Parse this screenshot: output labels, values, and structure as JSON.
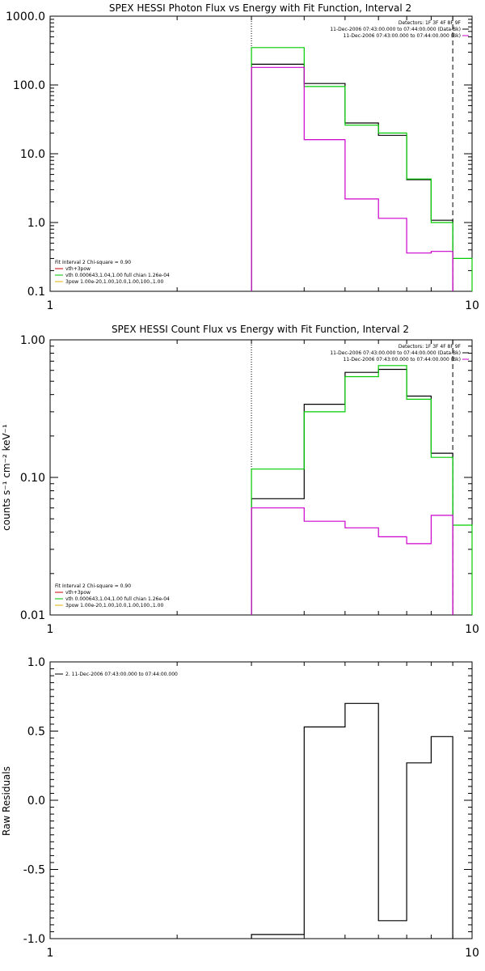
{
  "chart_data": [
    {
      "type": "line",
      "title": "SPEX HESSI Photon Flux vs Energy with Fit Function, Interval 2",
      "xlabel": "",
      "ylabel": "",
      "xscale": "log",
      "yscale": "log",
      "xlim": [
        1,
        10
      ],
      "ylim": [
        0.1,
        1000
      ],
      "x_ticks": [
        "1",
        "10"
      ],
      "y_ticks": [
        "0.1",
        "1.0",
        "10.0",
        "100.0",
        "1000.0"
      ],
      "vlines": [
        {
          "x": 3.0,
          "style": "dotted"
        },
        {
          "x": 9.0,
          "style": "dashed"
        }
      ],
      "legend_top_right": [
        {
          "text": "Detectors: 1F 3F 4F 8F 9F",
          "color": "#000000"
        },
        {
          "text": "11-Dec-2006 07:43:00.000 to 07:44:00.000 (Data-Bk)",
          "color": "#000000"
        },
        {
          "text": "11-Dec-2006 07:43:00.000 to 07:44:00.000 (Bk)",
          "color": "#cc00cc"
        }
      ],
      "legend_bottom_left": [
        {
          "text": "Fit Interval 2   Chi-square = 0.90",
          "color": "#000000"
        },
        {
          "text": "vth+3pow",
          "color": "#cc0000"
        },
        {
          "text": "vth 0.000643,1.04,1.00  full chian 1.26e-04",
          "color": "#00bb00"
        },
        {
          "text": "3pow 1.00e-20,1.00,10.0,1.00,100.,1.00",
          "color": "#e0b000"
        }
      ],
      "edges": [
        3.0,
        4.0,
        5.0,
        6.0,
        7.0,
        8.0,
        9.0,
        10.0
      ],
      "series": [
        {
          "name": "Data-Bk",
          "color": "#000000",
          "values": [
            200,
            105,
            28,
            18.5,
            4.2,
            1.08,
            null
          ]
        },
        {
          "name": "vth",
          "color": "#00cc00",
          "values": [
            350,
            95,
            26,
            20,
            4.3,
            1.0,
            0.3
          ]
        },
        {
          "name": "Bk",
          "color": "#cc00cc",
          "values": [
            180,
            16,
            2.2,
            1.15,
            0.36,
            0.38,
            null
          ]
        }
      ]
    },
    {
      "type": "line",
      "title": "SPEX HESSI Count Flux vs Energy with Fit Function, Interval 2",
      "xlabel": "",
      "ylabel": "counts s⁻¹ cm⁻² keV⁻¹",
      "xscale": "log",
      "yscale": "log",
      "xlim": [
        1,
        10
      ],
      "ylim": [
        0.01,
        1.0
      ],
      "x_ticks": [
        "1",
        "10"
      ],
      "y_ticks": [
        "0.01",
        "0.10",
        "1.00"
      ],
      "vlines": [
        {
          "x": 3.0,
          "style": "dotted"
        },
        {
          "x": 9.0,
          "style": "dashed"
        }
      ],
      "legend_top_right": [
        {
          "text": "Detectors: 1F 3F 4F 8F 9F",
          "color": "#000000"
        },
        {
          "text": "11-Dec-2006 07:43:00.000 to 07:44:00.000 (Data-Bk)",
          "color": "#000000"
        },
        {
          "text": "11-Dec-2006 07:43:00.000 to 07:44:00.000 (Bk)",
          "color": "#cc00cc"
        }
      ],
      "legend_bottom_left": [
        {
          "text": "Fit Interval 2   Chi-square = 0.90",
          "color": "#000000"
        },
        {
          "text": "vth+3pow",
          "color": "#cc0000"
        },
        {
          "text": "vth 0.000643,1.04,1.00  full chian 1.26e-04",
          "color": "#00bb00"
        },
        {
          "text": "3pow 1.00e-20,1.00,10.0,1.00,100.,1.00",
          "color": "#e0b000"
        }
      ],
      "edges": [
        3.0,
        4.0,
        5.0,
        6.0,
        7.0,
        8.0,
        9.0,
        10.0
      ],
      "series": [
        {
          "name": "Data-Bk",
          "color": "#000000",
          "values": [
            0.07,
            0.34,
            0.58,
            0.61,
            0.39,
            0.15,
            null
          ]
        },
        {
          "name": "vth",
          "color": "#00cc00",
          "values": [
            0.115,
            0.3,
            0.54,
            0.65,
            0.37,
            0.14,
            0.045
          ]
        },
        {
          "name": "Bk",
          "color": "#cc00cc",
          "values": [
            0.06,
            0.048,
            0.043,
            0.037,
            0.033,
            0.053,
            null
          ]
        }
      ]
    },
    {
      "type": "line",
      "title": "",
      "xlabel": "",
      "ylabel": "Raw Residuals",
      "xscale": "log",
      "yscale": "linear",
      "xlim": [
        1,
        10
      ],
      "ylim": [
        -1.0,
        1.0
      ],
      "x_ticks": [
        "1",
        "10"
      ],
      "y_ticks": [
        "-1.0",
        "-0.5",
        "0.0",
        "0.5",
        "1.0"
      ],
      "legend_top_left": [
        {
          "text": "2. 11-Dec-2006 07:43:00.000 to 07:44:00.000",
          "color": "#000000"
        }
      ],
      "edges": [
        3.0,
        4.0,
        5.0,
        6.0,
        7.0,
        8.0,
        9.0
      ],
      "series": [
        {
          "name": "2. 11-Dec-2006 07:43:00.000 to 07:44:00.000",
          "color": "#000000",
          "values": [
            -0.97,
            0.53,
            0.7,
            -0.87,
            0.27,
            0.46
          ]
        }
      ]
    }
  ]
}
